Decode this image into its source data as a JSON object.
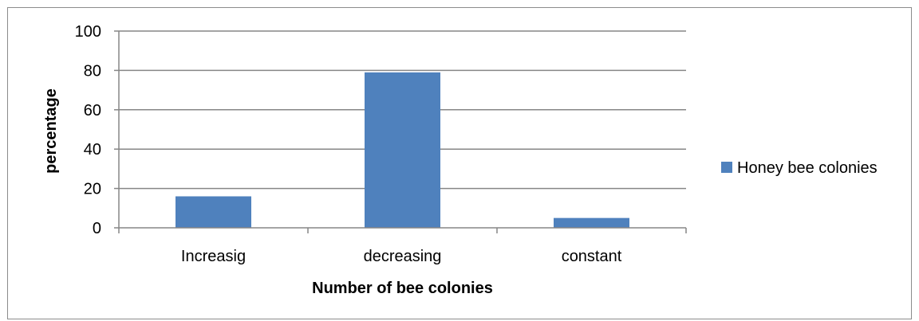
{
  "chart_data": {
    "type": "bar",
    "title": "",
    "xlabel": "Number of bee colonies",
    "ylabel": "percentage",
    "categories": [
      "Increasig",
      "decreasing",
      "constant"
    ],
    "series": [
      {
        "name": "Honey bee colonies",
        "values": [
          16,
          79,
          5
        ],
        "color": "#4f81bd"
      }
    ],
    "ylim": [
      0,
      100
    ],
    "yticks": [
      0,
      20,
      40,
      60,
      80,
      100
    ],
    "grid": true,
    "legend_position": "right"
  }
}
